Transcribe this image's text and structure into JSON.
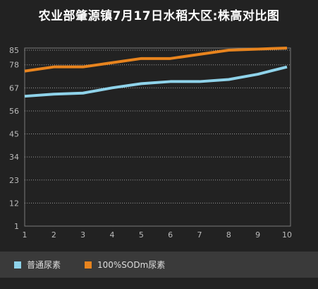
{
  "title": "农业部肇源镇7月17日水稻大区:株高对比图",
  "chart_data": {
    "type": "line",
    "title": "农业部肇源镇7月17日水稻大区:株高对比图",
    "xlabel": "",
    "ylabel": "",
    "x": [
      1,
      2,
      3,
      4,
      5,
      6,
      7,
      8,
      9,
      10
    ],
    "x_tick_labels": [
      "1",
      "2",
      "3",
      "4",
      "5",
      "6",
      "7",
      "8",
      "9",
      "10"
    ],
    "y_tick_labels": [
      "1",
      "12",
      "23",
      "34",
      "45",
      "56",
      "67",
      "78",
      "85"
    ],
    "y_ticks": [
      1,
      12,
      23,
      34,
      45,
      56,
      67,
      78,
      85
    ],
    "ylim": [
      1,
      86
    ],
    "grid": true,
    "legend_position": "bottom",
    "series": [
      {
        "name": "普通尿素",
        "color": "#8fd3ea",
        "values": [
          63,
          64,
          64.5,
          67,
          69,
          70,
          70,
          71,
          73.5,
          77
        ]
      },
      {
        "name": "100%SODm尿素",
        "color": "#e8841e",
        "values": [
          75,
          77,
          77,
          79,
          81,
          81,
          83,
          85,
          85.5,
          86
        ]
      }
    ]
  },
  "legend": {
    "items": [
      {
        "label": "普通尿素",
        "color": "#8fd3ea"
      },
      {
        "label": "100%SODm尿素",
        "color": "#e8841e"
      }
    ]
  }
}
